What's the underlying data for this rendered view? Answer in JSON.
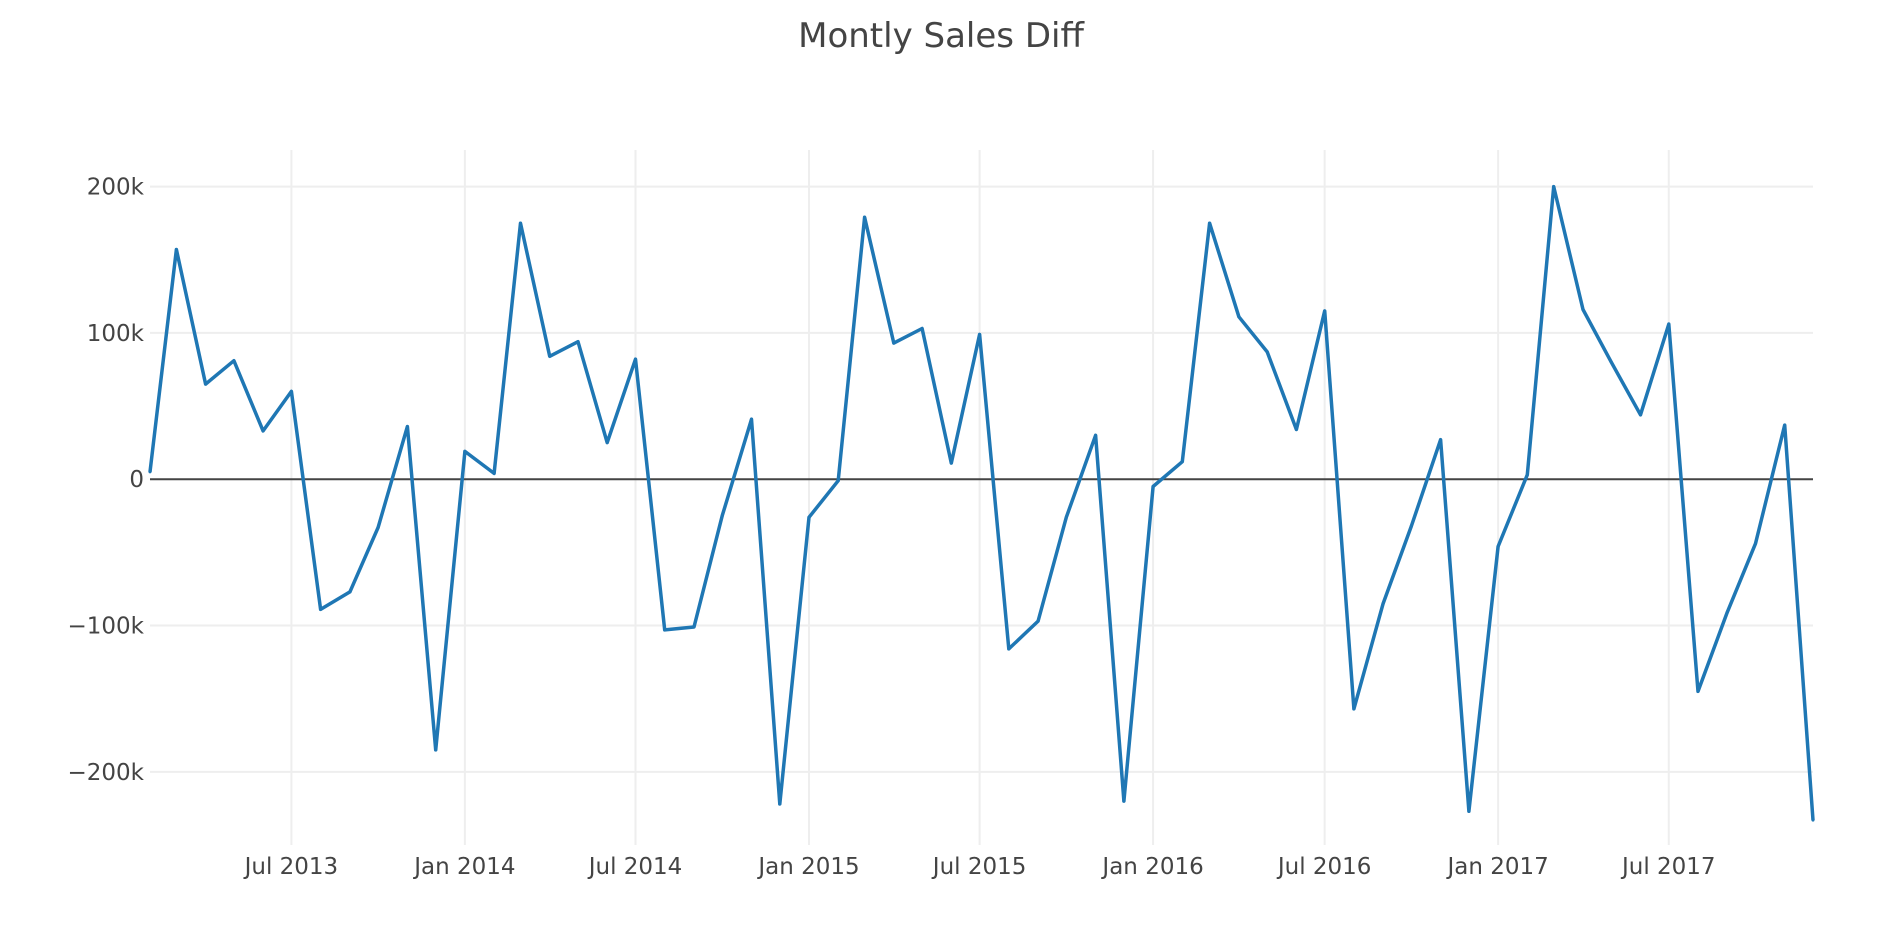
{
  "chart_data": {
    "type": "line",
    "title": "Montly Sales Diff",
    "xlabel": "",
    "ylabel": "",
    "grid": true,
    "zero_line": true,
    "x_start": "2013-02-01",
    "x_end": "2017-12-01",
    "xticks": [
      {
        "date": "2013-07-01",
        "label": "Jul 2013"
      },
      {
        "date": "2014-01-01",
        "label": "Jan 2014"
      },
      {
        "date": "2014-07-01",
        "label": "Jul 2014"
      },
      {
        "date": "2015-01-01",
        "label": "Jan 2015"
      },
      {
        "date": "2015-07-01",
        "label": "Jul 2015"
      },
      {
        "date": "2016-01-01",
        "label": "Jan 2016"
      },
      {
        "date": "2016-07-01",
        "label": "Jul 2016"
      },
      {
        "date": "2017-01-01",
        "label": "Jan 2017"
      },
      {
        "date": "2017-07-01",
        "label": "Jul 2017"
      }
    ],
    "yticks": [
      {
        "value": 200000,
        "label": "200k"
      },
      {
        "value": 100000,
        "label": "100k"
      },
      {
        "value": 0,
        "label": "0"
      },
      {
        "value": -100000,
        "label": "−100k"
      },
      {
        "value": -200000,
        "label": "−200k"
      }
    ],
    "ylim": [
      -250000,
      225000
    ],
    "colors": {
      "line": "#1f77b4",
      "grid": "#eeeeee",
      "zero": "#444444"
    },
    "series": [
      {
        "x": [
          "2013-02-01",
          "2013-03-01",
          "2013-04-01",
          "2013-05-01",
          "2013-06-01",
          "2013-07-01",
          "2013-08-01",
          "2013-09-01",
          "2013-10-01",
          "2013-11-01",
          "2013-12-01",
          "2014-01-01",
          "2014-02-01",
          "2014-03-01",
          "2014-04-01",
          "2014-05-01",
          "2014-06-01",
          "2014-07-01",
          "2014-08-01",
          "2014-09-01",
          "2014-10-01",
          "2014-11-01",
          "2014-12-01",
          "2015-01-01",
          "2015-02-01",
          "2015-03-01",
          "2015-04-01",
          "2015-05-01",
          "2015-06-01",
          "2015-07-01",
          "2015-08-01",
          "2015-09-01",
          "2015-10-01",
          "2015-11-01",
          "2015-12-01",
          "2016-01-01",
          "2016-02-01",
          "2016-03-01",
          "2016-04-01",
          "2016-05-01",
          "2016-06-01",
          "2016-07-01",
          "2016-08-01",
          "2016-09-01",
          "2016-10-01",
          "2016-11-01",
          "2016-12-01",
          "2017-01-01",
          "2017-02-01",
          "2017-03-01",
          "2017-04-01",
          "2017-05-01",
          "2017-06-01",
          "2017-07-01",
          "2017-08-01",
          "2017-09-01",
          "2017-10-01",
          "2017-11-01",
          "2017-12-01"
        ],
        "values": [
          5000,
          157000,
          65000,
          81000,
          33000,
          60000,
          -89000,
          -77000,
          -33000,
          36000,
          -185000,
          19000,
          4000,
          175000,
          84000,
          94000,
          25000,
          82000,
          -103000,
          -101000,
          -25000,
          41000,
          -222000,
          -26000,
          -1000,
          179000,
          93000,
          103000,
          11000,
          99000,
          -116000,
          -97000,
          -26000,
          30000,
          -220000,
          -5000,
          12000,
          175000,
          111000,
          87000,
          34000,
          115000,
          -157000,
          -85000,
          -32000,
          27000,
          -227000,
          -46000,
          3000,
          200000,
          116000,
          80000,
          44000,
          106000,
          -145000,
          -91000,
          -44000,
          37000,
          -233000
        ]
      }
    ]
  }
}
